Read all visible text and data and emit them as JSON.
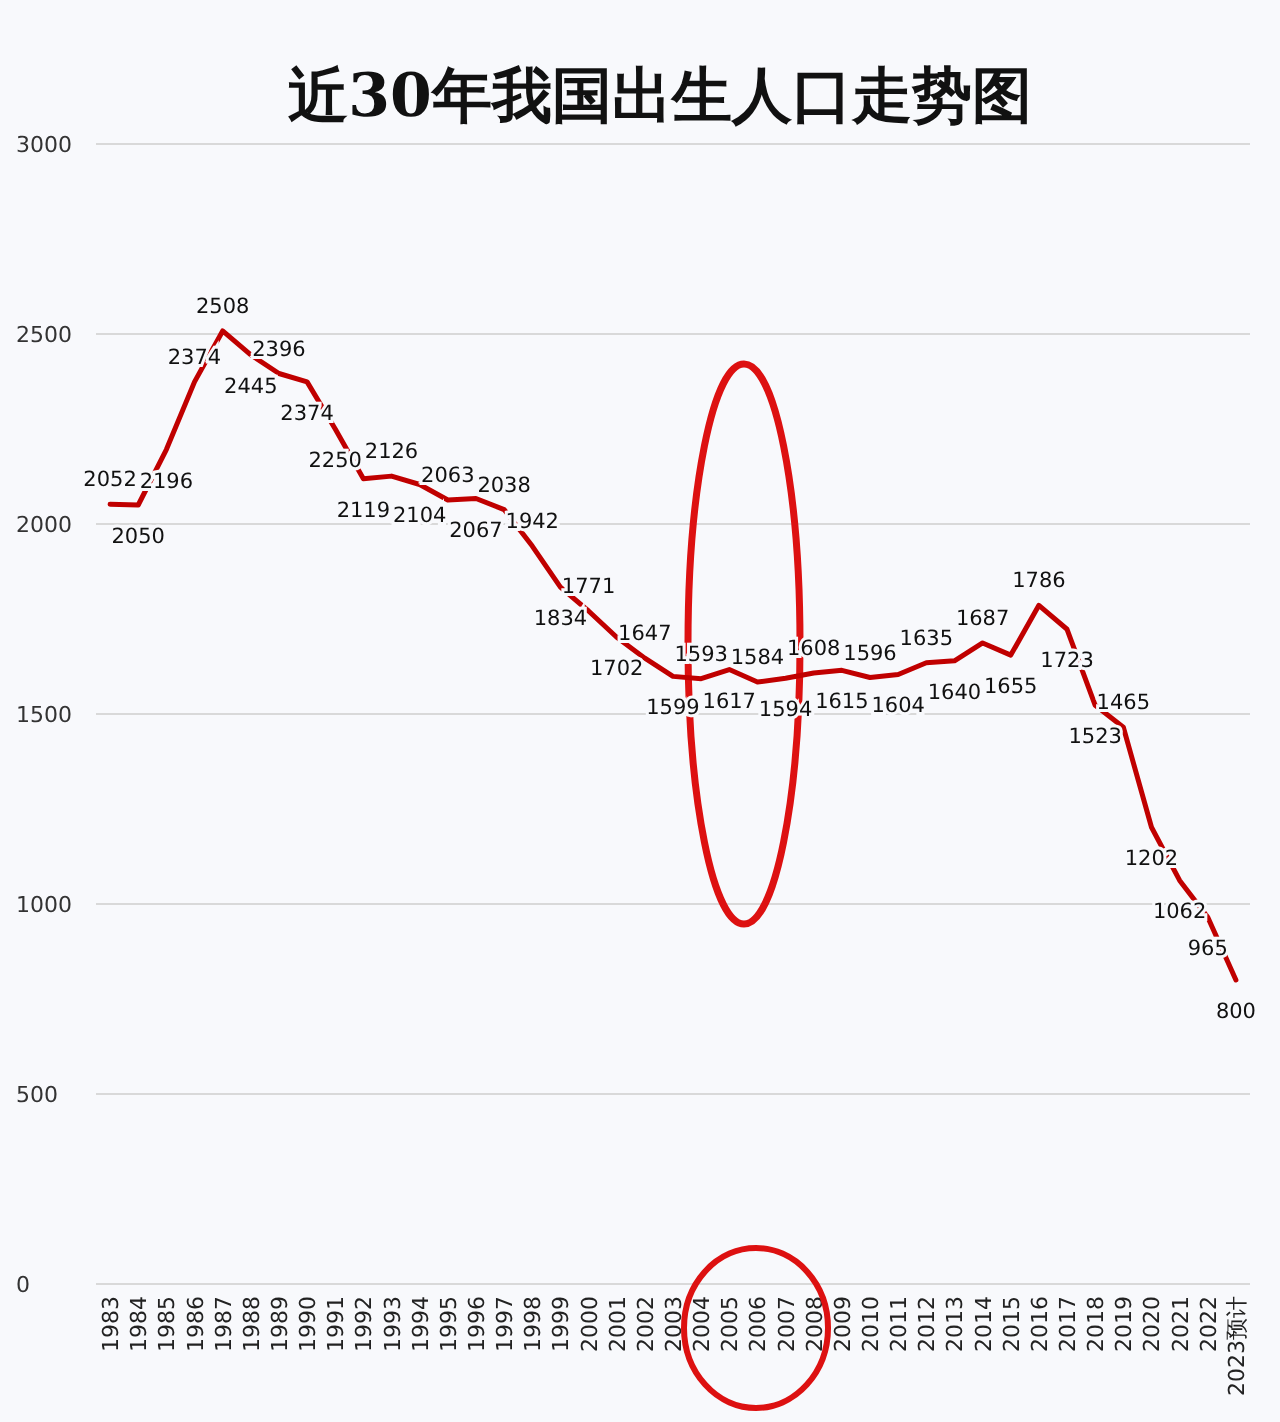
{
  "chart_data": {
    "type": "line",
    "title": "近30年我国出生人口走势图",
    "categories": [
      "1983",
      "1984",
      "1985",
      "1986",
      "1987",
      "1988",
      "1989",
      "1990",
      "1991",
      "1992",
      "1993",
      "1994",
      "1995",
      "1996",
      "1997",
      "1998",
      "1999",
      "2000",
      "2001",
      "2002",
      "2003",
      "2004",
      "2005",
      "2006",
      "2007",
      "2008",
      "2009",
      "2010",
      "2011",
      "2012",
      "2013",
      "2014",
      "2015",
      "2016",
      "2017",
      "2018",
      "2019",
      "2020",
      "2021",
      "2022",
      "2023预计"
    ],
    "series": [
      {
        "color": "#c00000",
        "values": [
          2052,
          2050,
          2196,
          2374,
          2508,
          2445,
          2396,
          2374,
          2250,
          2119,
          2126,
          2104,
          2063,
          2067,
          2038,
          1942,
          1834,
          1771,
          1702,
          1647,
          1599,
          1593,
          1617,
          1584,
          1594,
          1608,
          1615,
          1596,
          1604,
          1635,
          1640,
          1687,
          1655,
          1786,
          1723,
          1523,
          1465,
          1202,
          1062,
          965,
          800
        ]
      }
    ],
    "ylim": [
      0,
      3000
    ],
    "yticks": [
      0,
      500,
      1000,
      1500,
      2000,
      2500,
      3000
    ],
    "grid": "y",
    "data_labels": true
  }
}
